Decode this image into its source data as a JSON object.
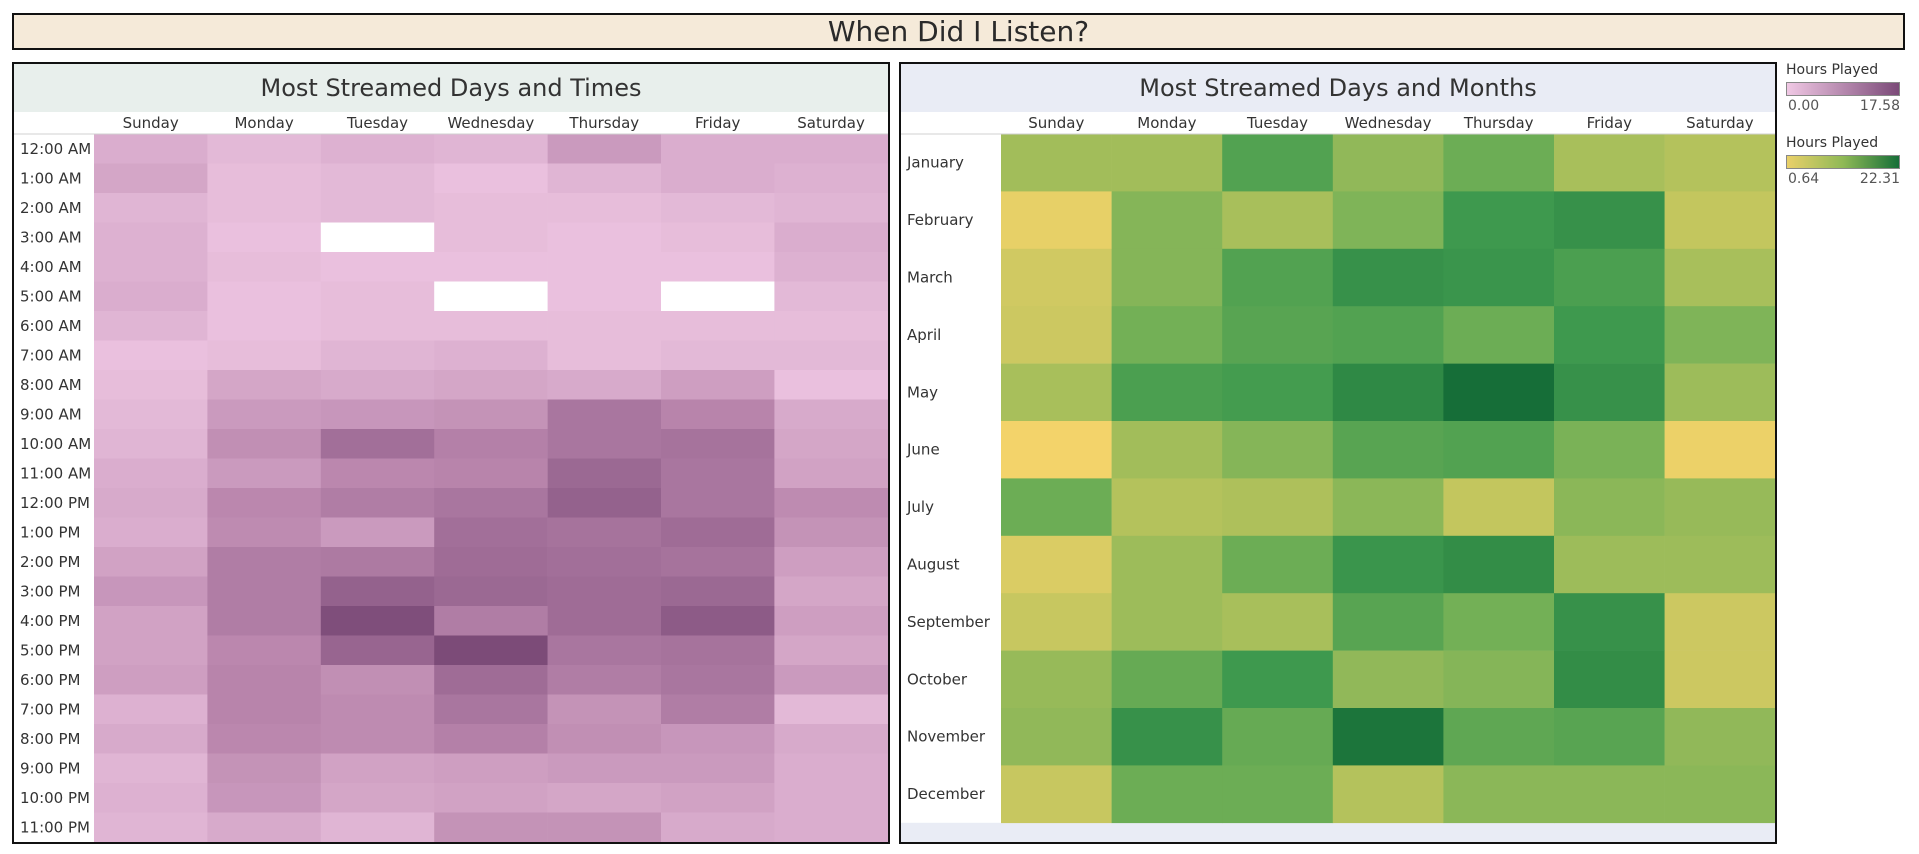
{
  "title": "When Did I Listen?",
  "days": [
    "Sunday",
    "Monday",
    "Tuesday",
    "Wednesday",
    "Thursday",
    "Friday",
    "Saturday"
  ],
  "legends": [
    {
      "title": "Hours Played",
      "min": "0.00",
      "max": "17.58",
      "color_low": "#f0c8e4",
      "color_high": "#7b4a78"
    },
    {
      "title": "Hours Played",
      "min": "0.64",
      "max": "22.31",
      "color_low": "#ead069",
      "color_high": "#166e38"
    }
  ],
  "chart_data": [
    {
      "type": "heatmap",
      "title": "Most Streamed Days and Times",
      "x": [
        "Sunday",
        "Monday",
        "Tuesday",
        "Wednesday",
        "Thursday",
        "Friday",
        "Saturday"
      ],
      "y": [
        "12:00 AM",
        "1:00 AM",
        "2:00 AM",
        "3:00 AM",
        "4:00 AM",
        "5:00 AM",
        "6:00 AM",
        "7:00 AM",
        "8:00 AM",
        "9:00 AM",
        "10:00 AM",
        "11:00 AM",
        "12:00 PM",
        "1:00 PM",
        "2:00 PM",
        "3:00 PM",
        "4:00 PM",
        "5:00 PM",
        "6:00 PM",
        "7:00 PM",
        "8:00 PM",
        "9:00 PM",
        "10:00 PM",
        "11:00 PM"
      ],
      "value_range": [
        0.0,
        17.58
      ],
      "values": [
        [
          3.5,
          2.0,
          3.0,
          2.5,
          6.0,
          3.5,
          3.5
        ],
        [
          4.5,
          1.5,
          2.0,
          1.0,
          2.5,
          3.5,
          3.0
        ],
        [
          2.5,
          1.5,
          2.0,
          1.5,
          1.5,
          2.0,
          2.5
        ],
        [
          3.0,
          1.0,
          null,
          1.5,
          1.0,
          1.5,
          3.5
        ],
        [
          3.0,
          1.5,
          1.0,
          1.0,
          1.0,
          1.0,
          3.0
        ],
        [
          3.5,
          1.0,
          1.5,
          null,
          1.0,
          null,
          2.0
        ],
        [
          2.5,
          1.0,
          1.5,
          1.5,
          1.5,
          1.5,
          1.5
        ],
        [
          1.0,
          1.5,
          2.5,
          3.0,
          1.5,
          2.0,
          2.0
        ],
        [
          1.5,
          4.5,
          4.0,
          4.5,
          4.0,
          5.5,
          1.0
        ],
        [
          2.0,
          6.0,
          6.5,
          7.0,
          11.0,
          9.0,
          4.0
        ],
        [
          2.5,
          7.5,
          12.0,
          9.5,
          11.0,
          11.5,
          4.5
        ],
        [
          3.5,
          6.0,
          8.5,
          9.0,
          13.0,
          11.0,
          5.0
        ],
        [
          4.0,
          8.5,
          10.0,
          11.0,
          14.0,
          11.0,
          8.0
        ],
        [
          3.5,
          8.0,
          6.0,
          12.0,
          11.5,
          12.5,
          7.0
        ],
        [
          5.0,
          10.0,
          10.5,
          12.5,
          12.0,
          11.5,
          5.5
        ],
        [
          6.5,
          10.0,
          14.0,
          13.0,
          12.5,
          13.0,
          4.5
        ],
        [
          5.0,
          10.0,
          17.0,
          10.0,
          12.5,
          15.0,
          5.5
        ],
        [
          5.0,
          8.5,
          13.5,
          17.5,
          11.0,
          11.5,
          4.5
        ],
        [
          5.5,
          9.0,
          7.5,
          12.5,
          10.0,
          11.0,
          6.0
        ],
        [
          3.0,
          9.0,
          8.0,
          11.0,
          7.0,
          10.0,
          2.0
        ],
        [
          4.0,
          8.5,
          8.0,
          9.5,
          7.5,
          6.5,
          4.0
        ],
        [
          2.5,
          7.0,
          5.0,
          5.5,
          6.0,
          6.0,
          3.5
        ],
        [
          3.0,
          6.5,
          4.5,
          5.0,
          4.5,
          5.0,
          3.5
        ],
        [
          2.5,
          4.0,
          2.5,
          7.0,
          7.0,
          4.0,
          3.5
        ]
      ]
    },
    {
      "type": "heatmap",
      "title": "Most Streamed Days and Months",
      "x": [
        "Sunday",
        "Monday",
        "Tuesday",
        "Wednesday",
        "Thursday",
        "Friday",
        "Saturday"
      ],
      "y": [
        "January",
        "February",
        "March",
        "April",
        "May",
        "June",
        "July",
        "August",
        "September",
        "October",
        "November",
        "December"
      ],
      "value_range": [
        0.64,
        22.31
      ],
      "values": [
        [
          9.0,
          9.0,
          15.5,
          10.5,
          13.5,
          8.5,
          7.5
        ],
        [
          2.0,
          11.5,
          8.5,
          12.0,
          17.0,
          18.0,
          6.0
        ],
        [
          4.5,
          11.5,
          15.5,
          18.0,
          17.5,
          16.0,
          8.5
        ],
        [
          5.0,
          13.0,
          15.0,
          15.5,
          13.5,
          17.0,
          12.0
        ],
        [
          8.5,
          16.0,
          16.5,
          19.0,
          22.3,
          18.0,
          9.5
        ],
        [
          0.7,
          9.0,
          11.5,
          15.0,
          15.5,
          12.5,
          1.5
        ],
        [
          13.5,
          7.5,
          8.0,
          11.0,
          6.0,
          11.0,
          10.0
        ],
        [
          3.5,
          9.5,
          13.5,
          17.5,
          18.5,
          9.5,
          9.5
        ],
        [
          5.5,
          9.5,
          8.5,
          15.0,
          13.0,
          18.0,
          5.0
        ],
        [
          10.0,
          14.0,
          17.0,
          10.5,
          11.5,
          18.5,
          5.0
        ],
        [
          10.5,
          18.0,
          14.0,
          21.5,
          14.5,
          15.0,
          10.5
        ],
        [
          5.5,
          13.5,
          13.5,
          7.5,
          11.0,
          11.0,
          11.0
        ]
      ]
    }
  ]
}
